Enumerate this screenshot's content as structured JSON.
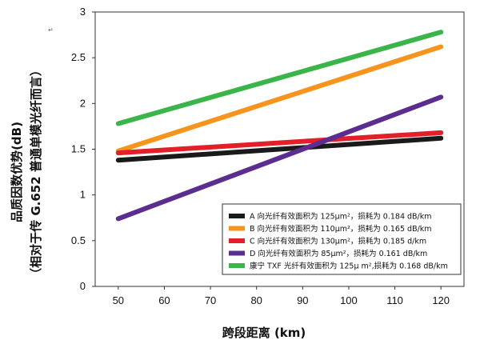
{
  "chart_data": {
    "type": "line",
    "title": "",
    "xlabel": "跨段距离 (km)",
    "ylabel_line1": "品质因数优势(dB)",
    "ylabel_line2": "（相对于传 G.652 普通单模光纤而言）",
    "xlim": [
      45,
      125
    ],
    "ylim": [
      0,
      3
    ],
    "x_ticks": [
      50,
      60,
      70,
      80,
      90,
      100,
      110,
      120
    ],
    "y_ticks": [
      0,
      0.5,
      1,
      1.5,
      2,
      2.5,
      3
    ],
    "y_tick_labels": [
      "0",
      "0.5",
      "1",
      "1.5",
      "2",
      "2.5",
      "3"
    ],
    "grid": false,
    "legend_position": "bottom-right",
    "series": [
      {
        "name": "A 向光纤有效面积为 125μm²，损耗为 0.184 dB/km",
        "color": "#1a1a1a",
        "x": [
          50,
          120
        ],
        "y": [
          1.38,
          1.62
        ]
      },
      {
        "name": "B 向光纤有效面积为 110μm²，损耗为 0.165 dB/km",
        "color": "#f7941d",
        "x": [
          50,
          120
        ],
        "y": [
          1.48,
          2.62
        ]
      },
      {
        "name": "C 向光纤有效面积为 130μm²，损耗为 0.185 d/km",
        "color": "#e3202a",
        "x": [
          50,
          120
        ],
        "y": [
          1.46,
          1.68
        ]
      },
      {
        "name": "D 向光纤有效面积为 85μm²，损耗为 0.161 dB/km",
        "color": "#5b2d8e",
        "x": [
          50,
          120
        ],
        "y": [
          0.74,
          2.07
        ]
      },
      {
        "name": "康宁 TXF 光纤有效面积为 125μ m²,损耗为 0.168 dB/km",
        "color": "#3ab54a",
        "x": [
          50,
          120
        ],
        "y": [
          1.78,
          2.78
        ]
      }
    ]
  }
}
